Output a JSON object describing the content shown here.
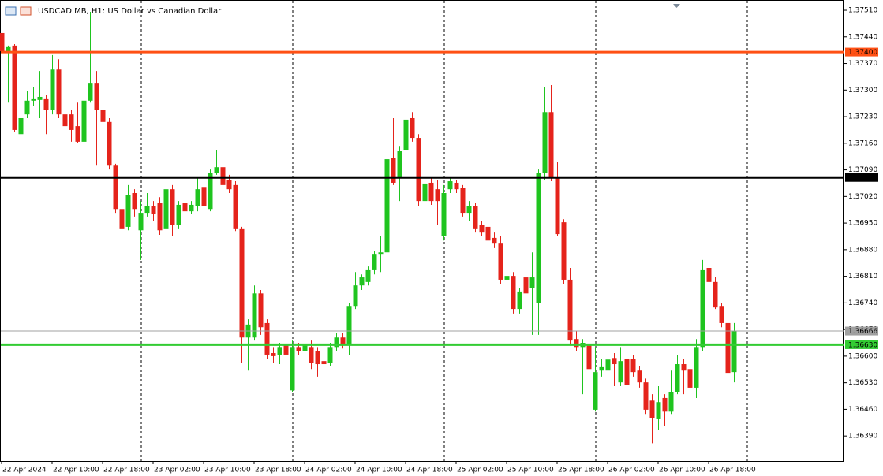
{
  "chart_data": {
    "type": "candlestick",
    "title": "USDCAD.MB, H1:  US Dollar vs Canadian Dollar",
    "categories": [
      "22 Apr 2024",
      null,
      null,
      null,
      null,
      null,
      null,
      null,
      "22 Apr 10:00",
      null,
      null,
      null,
      null,
      null,
      null,
      null,
      "22 Apr 18:00",
      null,
      null,
      null,
      null,
      null,
      null,
      null,
      "23 Apr 02:00",
      null,
      null,
      null,
      null,
      null,
      null,
      null,
      "23 Apr 10:00",
      null,
      null,
      null,
      null,
      null,
      null,
      null,
      "23 Apr 18:00",
      null,
      null,
      null,
      null,
      null,
      null,
      null,
      "24 Apr 02:00",
      null,
      null,
      null,
      null,
      null,
      null,
      null,
      "24 Apr 10:00",
      null,
      null,
      null,
      null,
      null,
      null,
      null,
      "24 Apr 18:00",
      null,
      null,
      null,
      null,
      null,
      null,
      null,
      "25 Apr 02:00",
      null,
      null,
      null,
      null,
      null,
      null,
      null,
      "25 Apr 10:00",
      null,
      null,
      null,
      null,
      null,
      null,
      null,
      "25 Apr 18:00",
      null,
      null,
      null,
      null,
      null,
      null,
      null,
      "26 Apr 02:00",
      null,
      null,
      null,
      null,
      null,
      null,
      null,
      "26 Apr 10:00",
      null,
      null,
      null,
      null,
      null,
      null,
      null,
      "26 Apr 18:00",
      null,
      null,
      null,
      null
    ],
    "open": [
      1.3745,
      1.37402,
      1.37417,
      1.37184,
      1.37236,
      1.37272,
      1.37274,
      1.37278,
      1.37247,
      1.37354,
      1.37236,
      1.37236,
      1.37205,
      1.37164,
      1.37272,
      1.37319,
      1.37247,
      1.37216,
      1.37101,
      1.36987,
      1.3694,
      1.37029,
      1.36931,
      1.36977,
      1.36994,
      1.37002,
      1.36936,
      1.37039,
      1.36946,
      1.37002,
      1.36981,
      1.36994,
      1.37045,
      1.36987,
      1.37081,
      1.37097,
      1.37064,
      1.3705,
      1.36936,
      1.36649,
      1.36649,
      1.36765,
      1.36687,
      1.36608,
      1.36604,
      1.36629,
      1.3651,
      1.36624,
      1.36614,
      1.36624,
      1.36614,
      1.36587,
      1.36583,
      1.36624,
      1.36649,
      1.36631,
      1.36732,
      1.36786,
      1.36795,
      1.36828,
      1.36869,
      1.36873,
      1.37122,
      1.3707,
      1.37143,
      1.37226,
      1.37174,
      1.37008,
      1.37056,
      1.37039,
      1.36915,
      1.37039,
      1.37056,
      1.37043,
      1.36977,
      1.36994,
      1.36946,
      1.3694,
      1.36911,
      1.36898,
      1.36801,
      1.36811,
      1.36724,
      1.36807,
      1.3678,
      1.36739,
      1.37081,
      1.37242,
      1.3707,
      1.36952,
      1.36801,
      1.36645,
      1.36624,
      1.36629,
      1.36459,
      1.36562,
      1.36562,
      1.36595,
      1.36531,
      1.36593,
      1.36593,
      1.36562,
      1.36531,
      1.36483,
      1.36434,
      1.3649,
      1.36454,
      1.36506,
      1.36579,
      1.36566,
      1.36517,
      1.36624,
      1.36832,
      1.36795,
      1.36732,
      1.36687,
      1.36558
    ],
    "high": [
      1.37454,
      1.37417,
      1.37421,
      1.37236,
      1.37298,
      1.37309,
      1.3735,
      1.37288,
      1.37392,
      1.37381,
      1.37278,
      1.37247,
      1.37267,
      1.37298,
      1.37506,
      1.3735,
      1.37257,
      1.37226,
      1.37106,
      1.37008,
      1.3705,
      1.37039,
      1.37008,
      1.37029,
      1.37008,
      1.37018,
      1.3705,
      1.3705,
      1.37008,
      1.37039,
      1.37008,
      1.3707,
      1.3707,
      1.37091,
      1.37143,
      1.37112,
      1.37077,
      1.3706,
      1.3694,
      1.36697,
      1.36786,
      1.36774,
      1.36697,
      1.36624,
      1.36635,
      1.36641,
      1.36641,
      1.36635,
      1.36641,
      1.36641,
      1.36624,
      1.36608,
      1.36635,
      1.36662,
      1.36662,
      1.36739,
      1.36821,
      1.36815,
      1.36836,
      1.36877,
      1.36915,
      1.37153,
      1.37226,
      1.37153,
      1.37288,
      1.37242,
      1.37184,
      1.37112,
      1.3707,
      1.37064,
      1.3705,
      1.3707,
      1.37064,
      1.3705,
      1.37008,
      1.37002,
      1.36956,
      1.36952,
      1.36925,
      1.36915,
      1.36832,
      1.36821,
      1.3678,
      1.36821,
      1.36873,
      1.37091,
      1.37309,
      1.37313,
      1.37112,
      1.3696,
      1.36832,
      1.36666,
      1.36645,
      1.36641,
      1.36624,
      1.36593,
      1.36604,
      1.36608,
      1.36624,
      1.36624,
      1.36604,
      1.36573,
      1.36541,
      1.365,
      1.36521,
      1.365,
      1.36562,
      1.36604,
      1.36593,
      1.36624,
      1.36645,
      1.36853,
      1.36956,
      1.36807,
      1.36739,
      1.36697,
      1.36687
    ],
    "low": [
      1.37396,
      1.37267,
      1.37189,
      1.37153,
      1.37226,
      1.37257,
      1.37226,
      1.37184,
      1.37236,
      1.37226,
      1.37174,
      1.37164,
      1.3716,
      1.37153,
      1.37267,
      1.37101,
      1.37205,
      1.37091,
      1.36977,
      1.36869,
      1.36931,
      1.36967,
      1.36853,
      1.36967,
      1.36956,
      1.36919,
      1.36904,
      1.36915,
      1.36936,
      1.36973,
      1.36973,
      1.36981,
      1.3689,
      1.36981,
      1.37077,
      1.37043,
      1.37029,
      1.36929,
      1.36583,
      1.36562,
      1.36641,
      1.36656,
      1.36593,
      1.36583,
      1.36579,
      1.36593,
      1.36506,
      1.36604,
      1.366,
      1.36566,
      1.36546,
      1.36562,
      1.36573,
      1.36614,
      1.3662,
      1.36604,
      1.36724,
      1.36774,
      1.36786,
      1.36815,
      1.36821,
      1.36869,
      1.3705,
      1.37008,
      1.37133,
      1.37164,
      1.36994,
      1.37002,
      1.36998,
      1.36946,
      1.36904,
      1.37029,
      1.37029,
      1.36967,
      1.36956,
      1.36925,
      1.36915,
      1.36894,
      1.36884,
      1.3679,
      1.3678,
      1.36712,
      1.36712,
      1.36739,
      1.36656,
      1.36656,
      1.37064,
      1.3706,
      1.36915,
      1.3679,
      1.36629,
      1.36614,
      1.365,
      1.36541,
      1.36454,
      1.36546,
      1.36552,
      1.36521,
      1.36521,
      1.3651,
      1.36546,
      1.36517,
      1.36448,
      1.36371,
      1.36407,
      1.36417,
      1.36448,
      1.365,
      1.365,
      1.36334,
      1.3649,
      1.36614,
      1.36786,
      1.36724,
      1.36676,
      1.36552,
      1.36531
    ],
    "close": [
      1.37402,
      1.37413,
      1.37195,
      1.37226,
      1.37272,
      1.37278,
      1.37282,
      1.37247,
      1.37354,
      1.37236,
      1.37205,
      1.37195,
      1.37164,
      1.37272,
      1.37319,
      1.37247,
      1.37216,
      1.37101,
      1.36987,
      1.36936,
      1.37023,
      1.36987,
      1.36977,
      1.36994,
      1.36973,
      1.36931,
      1.37039,
      1.36946,
      1.36998,
      1.36981,
      1.36998,
      1.37039,
      1.36994,
      1.37081,
      1.37097,
      1.3705,
      1.37039,
      1.36936,
      1.36649,
      1.36683,
      1.36765,
      1.36676,
      1.36604,
      1.366,
      1.36624,
      1.36604,
      1.36624,
      1.36614,
      1.36629,
      1.36583,
      1.36579,
      1.36579,
      1.36624,
      1.36649,
      1.36631,
      1.36732,
      1.36786,
      1.36807,
      1.36828,
      1.36869,
      1.36873,
      1.37118,
      1.37056,
      1.37139,
      1.37222,
      1.37174,
      1.37008,
      1.37054,
      1.37008,
      1.37008,
      1.37029,
      1.3706,
      1.37039,
      1.36977,
      1.36994,
      1.36936,
      1.36925,
      1.36904,
      1.36898,
      1.36801,
      1.36811,
      1.36724,
      1.3677,
      1.36765,
      1.36807,
      1.37081,
      1.37242,
      1.3707,
      1.36921,
      1.36801,
      1.36641,
      1.36624,
      1.36635,
      1.36566,
      1.36558,
      1.36571,
      1.36591,
      1.36579,
      1.36587,
      1.36525,
      1.36558,
      1.36531,
      1.36459,
      1.36438,
      1.36479,
      1.36454,
      1.36506,
      1.36579,
      1.36562,
      1.36517,
      1.36624,
      1.36828,
      1.36795,
      1.36728,
      1.36687,
      1.36556,
      1.36666
    ],
    "up_color": "#1fc41f",
    "down_color": "#e5231b",
    "ylim": [
      1.36324,
      1.37537
    ],
    "yticks": [
      {
        "value": 1.3751,
        "label": "1.37510"
      },
      {
        "value": 1.3744,
        "label": "1.37440"
      },
      {
        "value": 1.3737,
        "label": "1.37370"
      },
      {
        "value": 1.373,
        "label": "1.37300"
      },
      {
        "value": 1.3723,
        "label": "1.37230"
      },
      {
        "value": 1.3716,
        "label": "1.37160"
      },
      {
        "value": 1.3709,
        "label": "1.37090"
      },
      {
        "value": 1.3702,
        "label": "1.37020"
      },
      {
        "value": 1.3695,
        "label": "1.36950"
      },
      {
        "value": 1.3688,
        "label": "1.36880"
      },
      {
        "value": 1.3681,
        "label": "1.36810"
      },
      {
        "value": 1.3674,
        "label": "1.36740"
      },
      {
        "value": 1.3667,
        "label": "1.36670"
      },
      {
        "value": 1.366,
        "label": "1.36600"
      },
      {
        "value": 1.3653,
        "label": "1.36530"
      },
      {
        "value": 1.3646,
        "label": "1.36460"
      },
      {
        "value": 1.3639,
        "label": "1.36390"
      }
    ],
    "levels": [
      {
        "value": 1.374,
        "label": "1.37400",
        "color": "#ff5014",
        "width": 3
      },
      {
        "value": 1.3707,
        "label": "1.37070",
        "color": "#000000",
        "width": 3
      },
      {
        "value": 1.36666,
        "label": "1.36666",
        "color": "#a0a0a0",
        "width": 1
      },
      {
        "value": 1.3663,
        "label": "1.36630",
        "color": "#33cc33",
        "width": 3
      }
    ]
  }
}
